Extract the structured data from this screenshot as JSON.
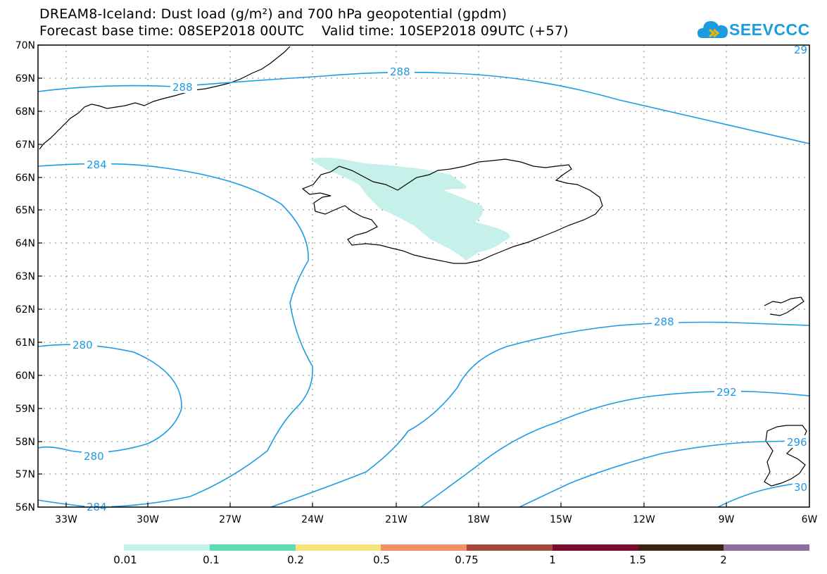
{
  "header": {
    "line1": "DREAM8-Iceland: Dust load (g/m²) and 700 hPa geopotential (gpdm)",
    "line2": "Forecast base time: 08SEP2018 00UTC    Valid time: 10SEP2018 09UTC (+57)"
  },
  "logo": {
    "text": "SEEVCCC",
    "icon": "cloud-logo-icon"
  },
  "map": {
    "lat_labels": [
      "70N",
      "69N",
      "68N",
      "67N",
      "66N",
      "65N",
      "64N",
      "63N",
      "62N",
      "61N",
      "60N",
      "59N",
      "58N",
      "57N",
      "56N"
    ],
    "lon_labels": [
      "33W",
      "30W",
      "27W",
      "24W",
      "21W",
      "18W",
      "15W",
      "12W",
      "9W",
      "6W"
    ],
    "contour_labels": [
      {
        "text": "288"
      },
      {
        "text": "288"
      },
      {
        "text": "284"
      },
      {
        "text": "280"
      },
      {
        "text": "280"
      },
      {
        "text": "284"
      },
      {
        "text": "288"
      },
      {
        "text": "292"
      },
      {
        "text": "296"
      },
      {
        "text": "30"
      },
      {
        "text": "29"
      }
    ],
    "contour_color": "#1e9be6",
    "dust_color": "#c6f0ea"
  },
  "legend": {
    "labels": [
      "0.01",
      "0.1",
      "0.2",
      "0.5",
      "0.75",
      "1",
      "1.5",
      "2"
    ],
    "colors": [
      "#c6f0ea",
      "#5ddcb1",
      "#f7e47a",
      "#ef9068",
      "#a7483c",
      "#7a0b2c",
      "#3b2314",
      "#8e6e9e"
    ]
  }
}
